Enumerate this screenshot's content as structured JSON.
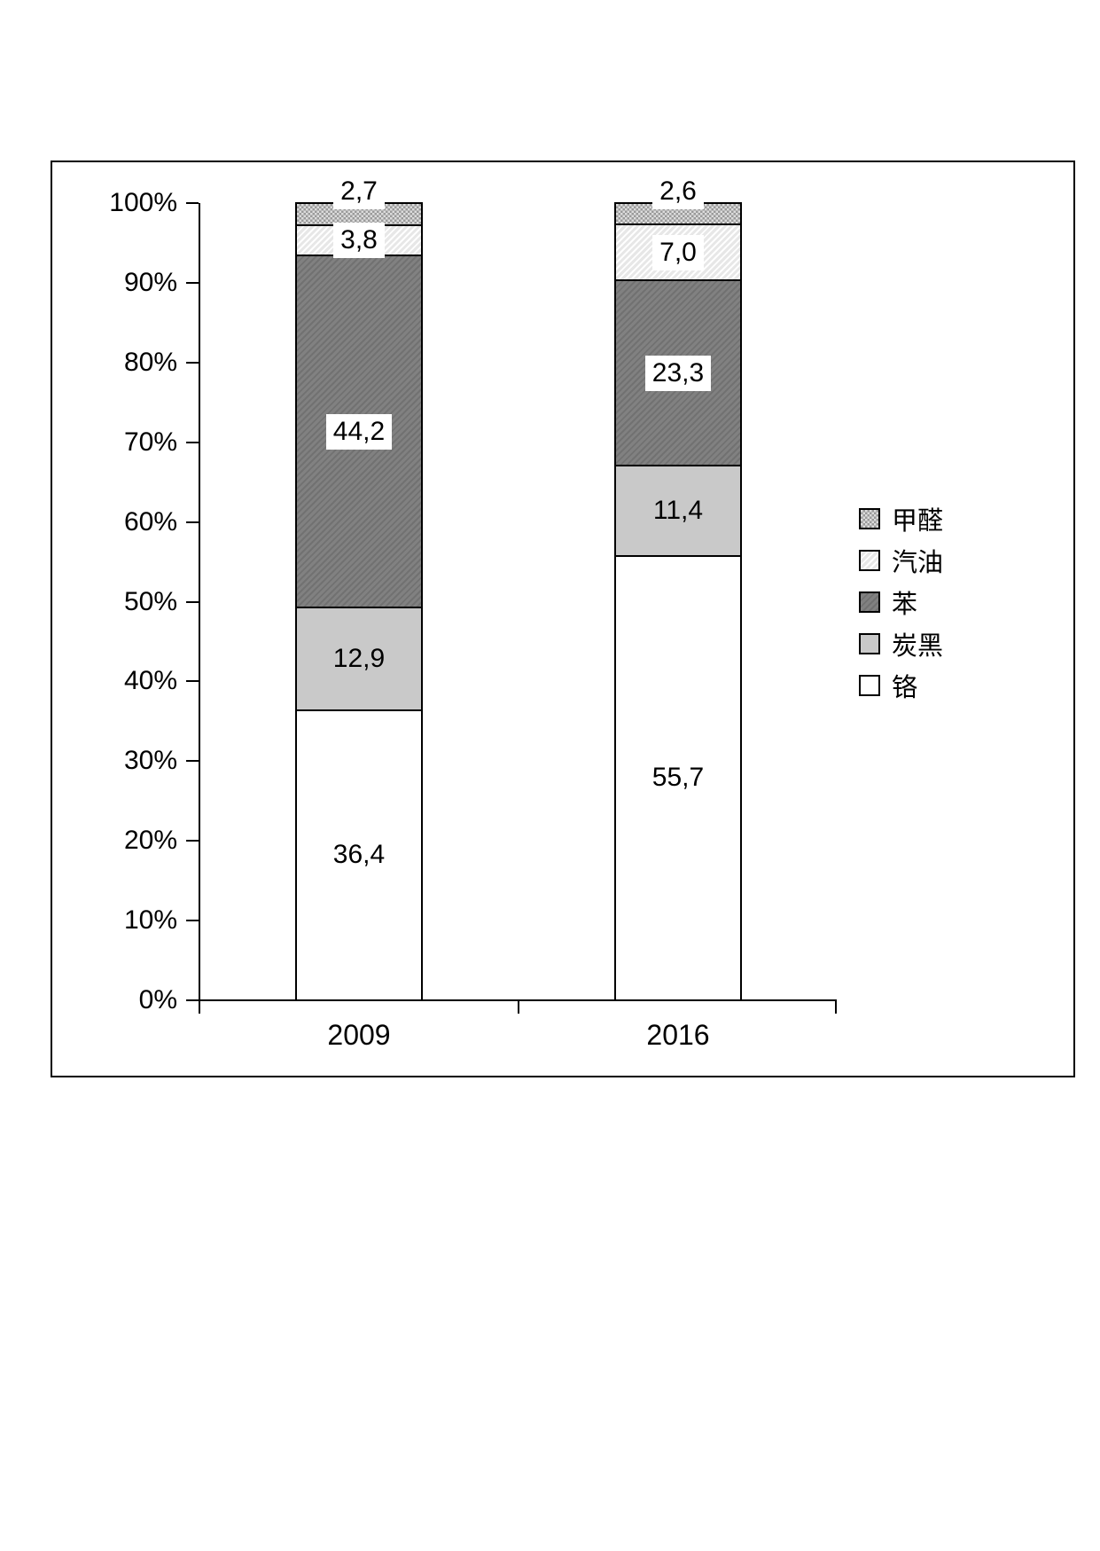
{
  "chart_data": {
    "type": "bar",
    "subtype": "stacked-100-percent",
    "title": "",
    "xlabel": "",
    "ylabel": "",
    "grid": false,
    "categories": [
      "2009",
      "2016"
    ],
    "series": [
      {
        "name": "铬",
        "values": [
          36.4,
          55.7
        ],
        "display_labels": [
          "36,4",
          "55,7"
        ],
        "color": "#ffffff",
        "pattern": "solid",
        "label_bg": false,
        "label_outside": false
      },
      {
        "name": "炭黑",
        "values": [
          12.9,
          11.4
        ],
        "display_labels": [
          "12,9",
          "11,4"
        ],
        "color": "#c9c9c9",
        "pattern": "solid",
        "label_bg": false,
        "label_outside": false
      },
      {
        "name": "苯",
        "values": [
          44.2,
          23.3
        ],
        "display_labels": [
          "44,2",
          "23,3"
        ],
        "color": "#818181",
        "pattern": "hatch-dark",
        "label_bg": true,
        "label_outside": false
      },
      {
        "name": "汽油",
        "values": [
          3.8,
          7.0
        ],
        "display_labels": [
          "3,8",
          "7,0"
        ],
        "color": "#e7e7e7",
        "pattern": "hatch-light",
        "label_bg": true,
        "label_outside": false
      },
      {
        "name": "甲醛",
        "values": [
          2.7,
          2.6
        ],
        "display_labels": [
          "2,7",
          "2,6"
        ],
        "color": "#b3b3b3",
        "pattern": "checker",
        "label_bg": true,
        "label_outside": true
      }
    ],
    "y_axis": {
      "min": 0,
      "max": 100,
      "ticks": [
        "0%",
        "10%",
        "20%",
        "30%",
        "40%",
        "50%",
        "60%",
        "70%",
        "80%",
        "90%",
        "100%"
      ]
    },
    "legend": {
      "position": "right",
      "entries": [
        "甲醛",
        "汽油",
        "苯",
        "炭黑",
        "铬"
      ]
    },
    "colors": {
      "axis": "#000000",
      "text": "#000000",
      "frame_border": "#000000",
      "label_box_bg": "#ffffff"
    }
  }
}
